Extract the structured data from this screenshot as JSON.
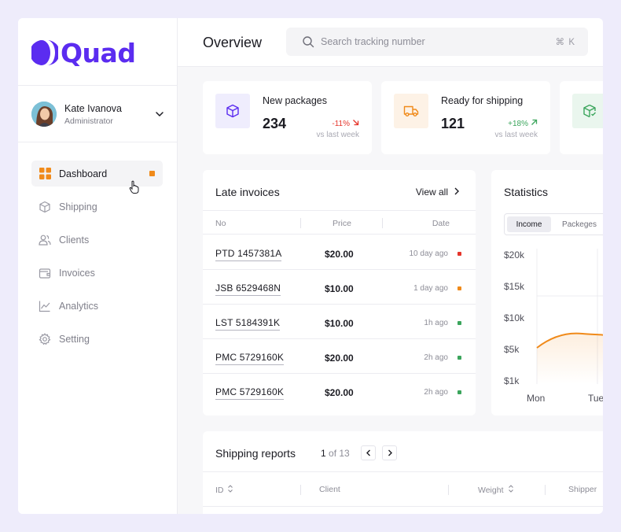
{
  "brand": {
    "name": "Quad",
    "color": "#5b2cf0"
  },
  "user": {
    "name": "Kate Ivanova",
    "role": "Administrator"
  },
  "nav": [
    {
      "label": "Dashboard",
      "icon": "grid-icon",
      "active": true
    },
    {
      "label": "Shipping",
      "icon": "box-icon"
    },
    {
      "label": "Clients",
      "icon": "users-icon"
    },
    {
      "label": "Invoices",
      "icon": "wallet-icon"
    },
    {
      "label": "Analytics",
      "icon": "chart-line-icon"
    },
    {
      "label": "Setting",
      "icon": "gear-icon"
    }
  ],
  "header": {
    "title": "Overview",
    "search_placeholder": "Search tracking number",
    "shortcut": "⌘ K"
  },
  "stats": [
    {
      "label": "New packages",
      "value": "234",
      "change": "-11%",
      "direction": "down",
      "note": "vs last week",
      "icon": "package-icon",
      "accent": "#5b2cf0",
      "bg": "#efedfd"
    },
    {
      "label": "Ready for shipping",
      "value": "121",
      "change": "+18%",
      "direction": "up",
      "note": "vs last week",
      "icon": "truck-icon",
      "accent": "#f08a1a",
      "bg": "#fdf2e6"
    },
    {
      "icon": "package-check-icon",
      "accent": "#3ba55c",
      "bg": "#eaf6ee"
    }
  ],
  "late_invoices": {
    "title": "Late invoices",
    "view_all": "View all",
    "columns": [
      "No",
      "Price",
      "Date"
    ],
    "rows": [
      {
        "no": "PTD 1457381A",
        "price": "$20.00",
        "date": "10 day ago",
        "status_color": "#e5352b"
      },
      {
        "no": "JSB 6529468N",
        "price": "$10.00",
        "date": "1 day ago",
        "status_color": "#f08a1a"
      },
      {
        "no": "LST 5184391K",
        "price": "$10.00",
        "date": "1h ago",
        "status_color": "#3ba55c"
      },
      {
        "no": "PMC 5729160K",
        "price": "$20.00",
        "date": "2h ago",
        "status_color": "#3ba55c"
      },
      {
        "no": "PMC 5729160K",
        "price": "$20.00",
        "date": "2h ago",
        "status_color": "#3ba55c"
      }
    ]
  },
  "statistics": {
    "title": "Statistics",
    "tabs": [
      "Income",
      "Packeges"
    ],
    "active_tab": "Income",
    "y_ticks": [
      "$20k",
      "$15k",
      "$10k",
      "$5k",
      "$1k"
    ],
    "x_ticks": [
      "Mon",
      "Tue"
    ],
    "line_color": "#f08a1a"
  },
  "shipping_reports": {
    "title": "Shipping reports",
    "page": "1",
    "page_total": "of 13",
    "columns": [
      "ID",
      "Client",
      "Weight",
      "Shipper"
    ]
  }
}
